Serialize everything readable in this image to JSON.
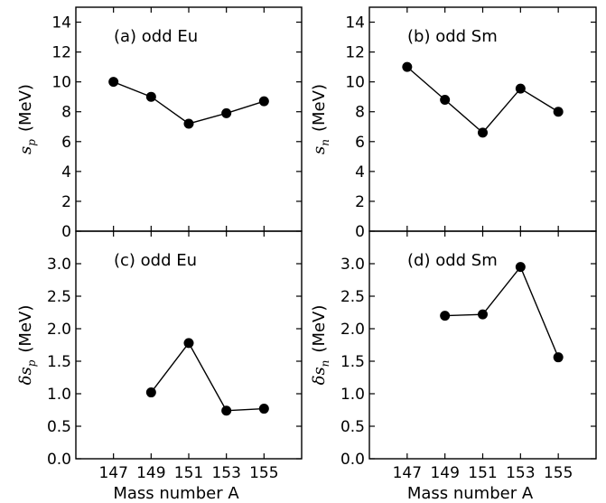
{
  "chart_data": [
    {
      "type": "line",
      "annotation": "(a) odd Eu",
      "ylabel": {
        "symbol": "s",
        "sub": "p",
        "unit": "(MeV)"
      },
      "xlabel": "",
      "x_ticks": [
        "147",
        "149",
        "151",
        "153",
        "155"
      ],
      "xlim": [
        145,
        157
      ],
      "ylim": [
        0,
        15
      ],
      "y_ticks": [
        "0",
        "2",
        "4",
        "6",
        "8",
        "10",
        "12",
        "14"
      ],
      "series": [
        {
          "x": [
            147,
            149,
            151,
            153,
            155
          ],
          "y": [
            10.0,
            9.0,
            7.2,
            7.9,
            8.7
          ]
        }
      ]
    },
    {
      "type": "line",
      "annotation": "(b) odd Sm",
      "ylabel": {
        "symbol": "s",
        "sub": "n",
        "unit": "(MeV)"
      },
      "xlabel": "",
      "x_ticks": [
        "147",
        "149",
        "151",
        "153",
        "155"
      ],
      "xlim": [
        145,
        157
      ],
      "ylim": [
        0,
        15
      ],
      "y_ticks": [
        "0",
        "2",
        "4",
        "6",
        "8",
        "10",
        "12",
        "14"
      ],
      "series": [
        {
          "x": [
            147,
            149,
            151,
            153,
            155
          ],
          "y": [
            11.0,
            8.8,
            6.6,
            9.55,
            8.0
          ]
        }
      ]
    },
    {
      "type": "line",
      "annotation": "(c) odd Eu",
      "ylabel": {
        "symbol": "δs",
        "sub": "p",
        "unit": "(MeV)"
      },
      "xlabel": "Mass number A",
      "x_ticks": [
        "147",
        "149",
        "151",
        "153",
        "155"
      ],
      "xlim": [
        145,
        157
      ],
      "ylim": [
        0,
        3.5
      ],
      "y_ticks": [
        "0.0",
        "0.5",
        "1.0",
        "1.5",
        "2.0",
        "2.5",
        "3.0"
      ],
      "series": [
        {
          "x": [
            149,
            151,
            153,
            155
          ],
          "y": [
            1.02,
            1.78,
            0.74,
            0.77
          ]
        }
      ]
    },
    {
      "type": "line",
      "annotation": "(d) odd Sm",
      "ylabel": {
        "symbol": "δs",
        "sub": "n",
        "unit": "(MeV)"
      },
      "xlabel": "Mass number A",
      "x_ticks": [
        "147",
        "149",
        "151",
        "153",
        "155"
      ],
      "xlim": [
        145,
        157
      ],
      "ylim": [
        0,
        3.5
      ],
      "y_ticks": [
        "0.0",
        "0.5",
        "1.0",
        "1.5",
        "2.0",
        "2.5",
        "3.0"
      ],
      "series": [
        {
          "x": [
            149,
            151,
            153,
            155
          ],
          "y": [
            2.2,
            2.22,
            2.95,
            1.56
          ]
        }
      ]
    }
  ]
}
